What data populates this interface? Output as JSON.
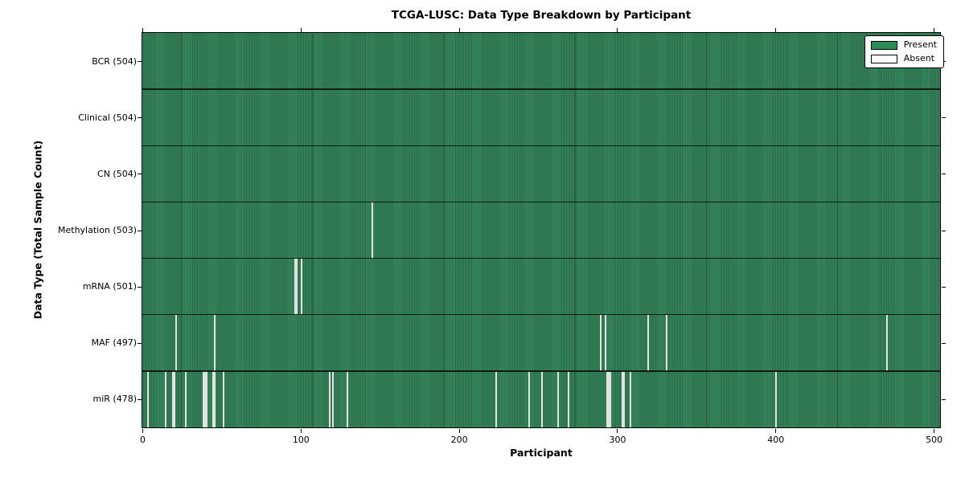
{
  "title": "TCGA-LUSC: Data Type Breakdown by Participant",
  "chart_data": {
    "type": "heatmap",
    "title": "TCGA-LUSC: Data Type Breakdown by Participant",
    "xlabel": "Participant",
    "ylabel": "Data Type (Total Sample Count)",
    "x_ticks": [
      0,
      100,
      200,
      300,
      400,
      500
    ],
    "xlim": [
      0,
      504
    ],
    "n_participants": 504,
    "grid": false,
    "legend": {
      "position": "upper right",
      "entries": [
        {
          "label": "Present",
          "color": "#2e8b57"
        },
        {
          "label": "Absent",
          "color": "#ffffff"
        }
      ]
    },
    "rows": [
      {
        "name": "BCR",
        "total": 504,
        "label": "BCR (504)",
        "absent": []
      },
      {
        "name": "Clinical",
        "total": 504,
        "label": "Clinical (504)",
        "absent": []
      },
      {
        "name": "CN",
        "total": 504,
        "label": "CN (504)",
        "absent": []
      },
      {
        "name": "Methylation",
        "total": 503,
        "label": "Methylation (503)",
        "absent": [
          145
        ]
      },
      {
        "name": "mRNA",
        "total": 501,
        "label": "mRNA (501)",
        "absent": [
          96,
          97,
          100
        ]
      },
      {
        "name": "MAF",
        "total": 497,
        "label": "MAF (497)",
        "absent": [
          21,
          45,
          289,
          292,
          319,
          331,
          470
        ]
      },
      {
        "name": "miR",
        "total": 478,
        "label": "miR (478)",
        "absent": [
          3,
          14,
          19,
          20,
          27,
          38,
          39,
          40,
          44,
          45,
          51,
          118,
          120,
          129,
          223,
          244,
          252,
          262,
          269,
          293,
          294,
          295,
          303,
          304,
          308,
          400
        ]
      }
    ],
    "colors": {
      "present": "#2e8b57",
      "present_stripe_light": "#37855b",
      "present_stripe_dark": "#296c47",
      "absent": "#ededed",
      "row_divider": "#04120a",
      "spine": "#000000",
      "background": "#ffffff"
    }
  }
}
